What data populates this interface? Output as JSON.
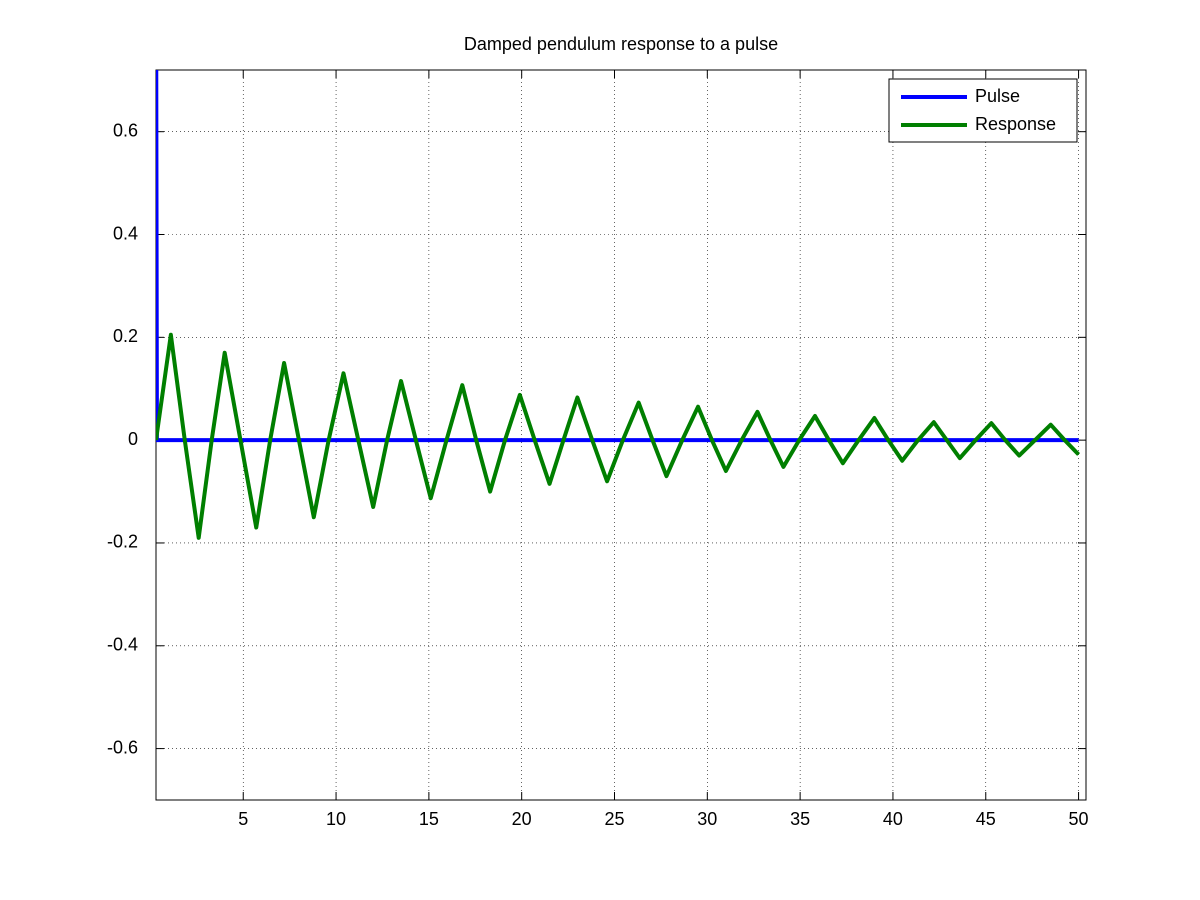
{
  "chart_data": {
    "type": "line",
    "title": "Damped pendulum response to a pulse",
    "xlim": [
      0.3,
      50.4
    ],
    "ylim": [
      -0.7,
      0.72
    ],
    "xticks": [
      5,
      10,
      15,
      20,
      25,
      30,
      35,
      40,
      45,
      50
    ],
    "yticks": [
      -0.6,
      -0.4,
      -0.2,
      0,
      0.2,
      0.4,
      0.6
    ],
    "grid": true,
    "legend": "upper right",
    "series": [
      {
        "name": "Pulse",
        "color": "#0000ff",
        "x": [
          0.3,
          0.35,
          50.0
        ],
        "values": [
          1,
          0,
          0
        ]
      },
      {
        "name": "Response",
        "color": "#007f00",
        "x": [
          0.3,
          1.1,
          1.85,
          2.6,
          3.3,
          4.0,
          4.85,
          5.7,
          6.45,
          7.2,
          8.0,
          8.8,
          9.6,
          10.4,
          11.2,
          12.0,
          12.75,
          13.5,
          14.3,
          15.1,
          15.95,
          16.8,
          17.55,
          18.3,
          19.1,
          19.9,
          20.7,
          21.5,
          22.25,
          23.0,
          23.8,
          24.6,
          25.45,
          26.3,
          27.05,
          27.8,
          28.65,
          29.5,
          30.25,
          31.0,
          31.85,
          32.7,
          33.4,
          34.1,
          34.95,
          35.8,
          36.55,
          37.3,
          38.15,
          39.0,
          39.75,
          40.5,
          41.35,
          42.2,
          42.9,
          43.6,
          44.45,
          45.3,
          46.05,
          46.8,
          47.65,
          48.5,
          49.25,
          50.0
        ],
        "values": [
          0,
          0.205,
          0,
          -0.19,
          0,
          0.17,
          0,
          -0.17,
          0,
          0.15,
          0,
          -0.15,
          0,
          0.13,
          0,
          -0.13,
          0,
          0.115,
          0,
          -0.113,
          0,
          0.107,
          0,
          -0.1,
          0,
          0.088,
          0,
          -0.085,
          0,
          0.083,
          0,
          -0.08,
          0,
          0.073,
          0,
          -0.07,
          0,
          0.065,
          0,
          -0.06,
          0,
          0.055,
          0,
          -0.052,
          0,
          0.047,
          0,
          -0.045,
          0,
          0.043,
          0,
          -0.04,
          0,
          0.035,
          0,
          -0.035,
          0,
          0.033,
          0,
          -0.03,
          0,
          0.03,
          0,
          -0.028
        ]
      }
    ]
  }
}
